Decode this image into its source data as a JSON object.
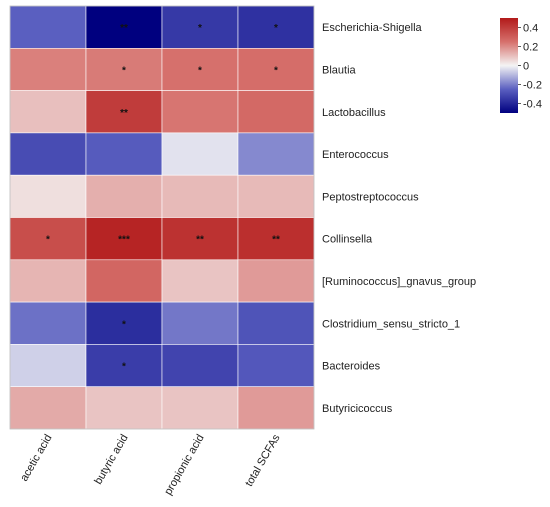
{
  "chart_data": {
    "type": "heatmap",
    "rows": [
      "Escherichia-Shigella",
      "Blautia",
      "Lactobacillus",
      "Enterococcus",
      "Peptostreptococcus",
      "Collinsella",
      "[Ruminococcus]_gnavus_group",
      "Clostridium_sensu_stricto_1",
      "Bacteroides",
      "Butyricicoccus"
    ],
    "columns": [
      "acetic acid",
      "butyric acid",
      "propionic acid",
      "total SCFAs"
    ],
    "values": [
      [
        -0.25,
        -0.53,
        -0.35,
        -0.37
      ],
      [
        0.22,
        0.23,
        0.25,
        0.26
      ],
      [
        0.1,
        0.4,
        0.24,
        0.27
      ],
      [
        -0.3,
        -0.26,
        -0.03,
        -0.18
      ],
      [
        0.04,
        0.13,
        0.11,
        0.11
      ],
      [
        0.35,
        0.47,
        0.43,
        0.44
      ],
      [
        0.12,
        0.28,
        0.09,
        0.17
      ],
      [
        -0.22,
        -0.38,
        -0.21,
        -0.28
      ],
      [
        -0.06,
        -0.34,
        -0.32,
        -0.27
      ],
      [
        0.14,
        0.09,
        0.09,
        0.17
      ]
    ],
    "significance": [
      [
        "",
        "**",
        "*",
        "*"
      ],
      [
        "",
        "*",
        "*",
        "*"
      ],
      [
        "",
        "**",
        "",
        ""
      ],
      [
        "",
        "",
        "",
        ""
      ],
      [
        "",
        "",
        "",
        ""
      ],
      [
        "*",
        "***",
        "**",
        "**"
      ],
      [
        "",
        "",
        "",
        ""
      ],
      [
        "",
        "*",
        "",
        ""
      ],
      [
        "",
        "*",
        "",
        ""
      ],
      [
        "",
        "",
        "",
        ""
      ]
    ],
    "colorbar": {
      "min": -0.5,
      "max": 0.5,
      "ticks": [
        "0.4",
        "0.2",
        "0",
        "-0.2",
        "-0.4"
      ],
      "tick_values": [
        0.4,
        0.2,
        0,
        -0.2,
        -0.4
      ],
      "colors": {
        "low": "#00007f",
        "mid": "#f4f4f4",
        "high": "#b21a1a"
      }
    },
    "grid": true,
    "legend_position": "top-right"
  }
}
